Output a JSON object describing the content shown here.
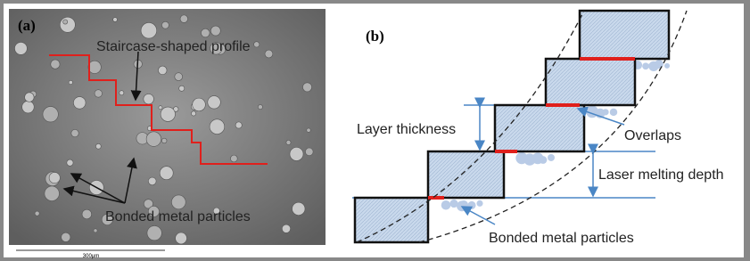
{
  "panel_a": {
    "label": "(a)",
    "profile_label": "Staircase-shaped profile",
    "particles_label": "Bonded metal particles",
    "scale_label": "300μm"
  },
  "panel_b": {
    "label": "(b)",
    "layer_thickness": "Layer thickness",
    "overlaps": "Overlaps",
    "melting_depth": "Laser melting depth",
    "particles_label": "Bonded metal particles"
  }
}
